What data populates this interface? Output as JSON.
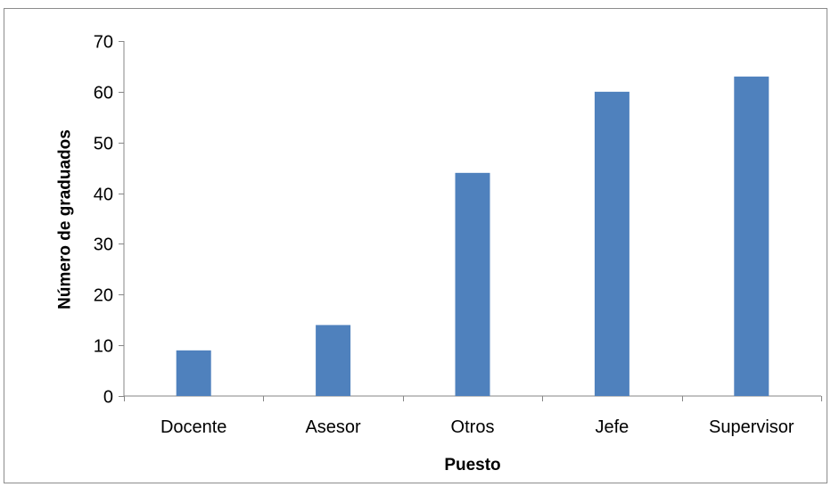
{
  "chart_data": {
    "type": "bar",
    "title": "",
    "xlabel": "Puesto",
    "ylabel": "Número de graduados",
    "categories": [
      "Docente",
      "Asesor",
      "Otros",
      "Jefe",
      "Supervisor"
    ],
    "series": [
      {
        "values": [
          9,
          14,
          44,
          60,
          63
        ]
      }
    ],
    "ylim": [
      0,
      70
    ],
    "yticks": [
      0,
      10,
      20,
      30,
      40,
      50,
      60,
      70
    ],
    "grid": false,
    "legend": "none",
    "bar_color": "#4f81bd",
    "axis_color": "#868686"
  }
}
